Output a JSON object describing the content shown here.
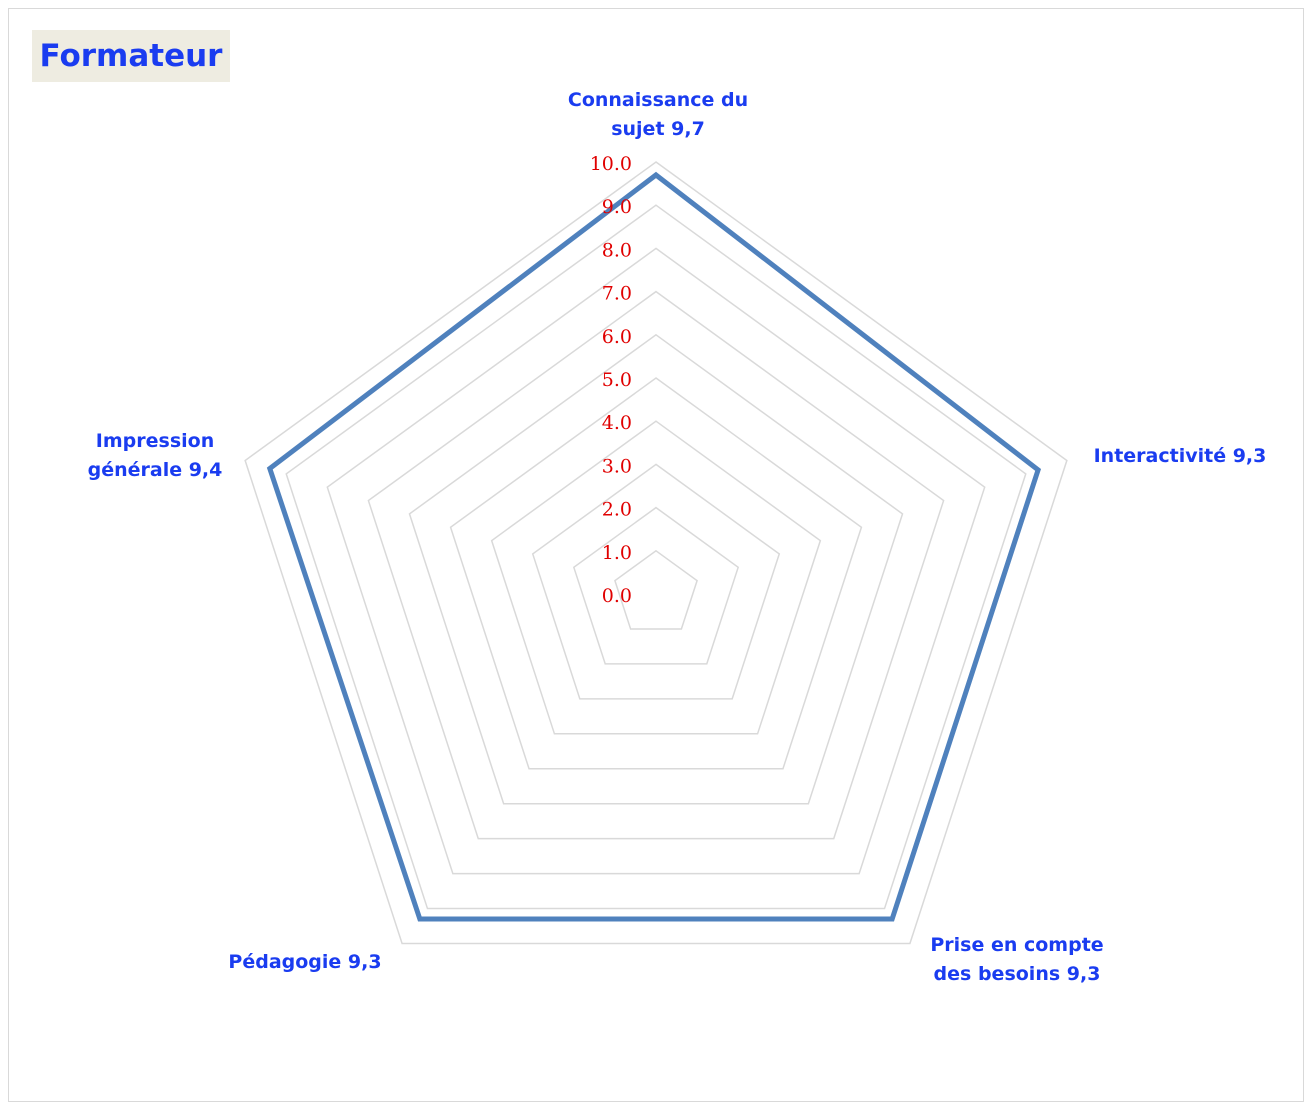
{
  "chart_data": {
    "type": "radar",
    "title": "Formateur",
    "categories": [
      "Connaissance du sujet 9,7",
      "Interactivité 9,3",
      "Prise en compte des besoins 9,3",
      "Pédagogie 9,3",
      "Impression générale 9,4"
    ],
    "values": [
      9.7,
      9.3,
      9.3,
      9.3,
      9.4
    ],
    "color": "#4f81bd",
    "ylim": [
      0,
      10
    ],
    "yticks": [
      {
        "value": 0,
        "label": "0.0"
      },
      {
        "value": 1,
        "label": "1.0"
      },
      {
        "value": 2,
        "label": "2.0"
      },
      {
        "value": 3,
        "label": "3.0"
      },
      {
        "value": 4,
        "label": "4.0"
      },
      {
        "value": 5,
        "label": "5.0"
      },
      {
        "value": 6,
        "label": "6.0"
      },
      {
        "value": 7,
        "label": "7.0"
      },
      {
        "value": 8,
        "label": "8.0"
      },
      {
        "value": 9,
        "label": "9.0"
      },
      {
        "value": 10,
        "label": "10.0"
      }
    ],
    "grid": true
  }
}
